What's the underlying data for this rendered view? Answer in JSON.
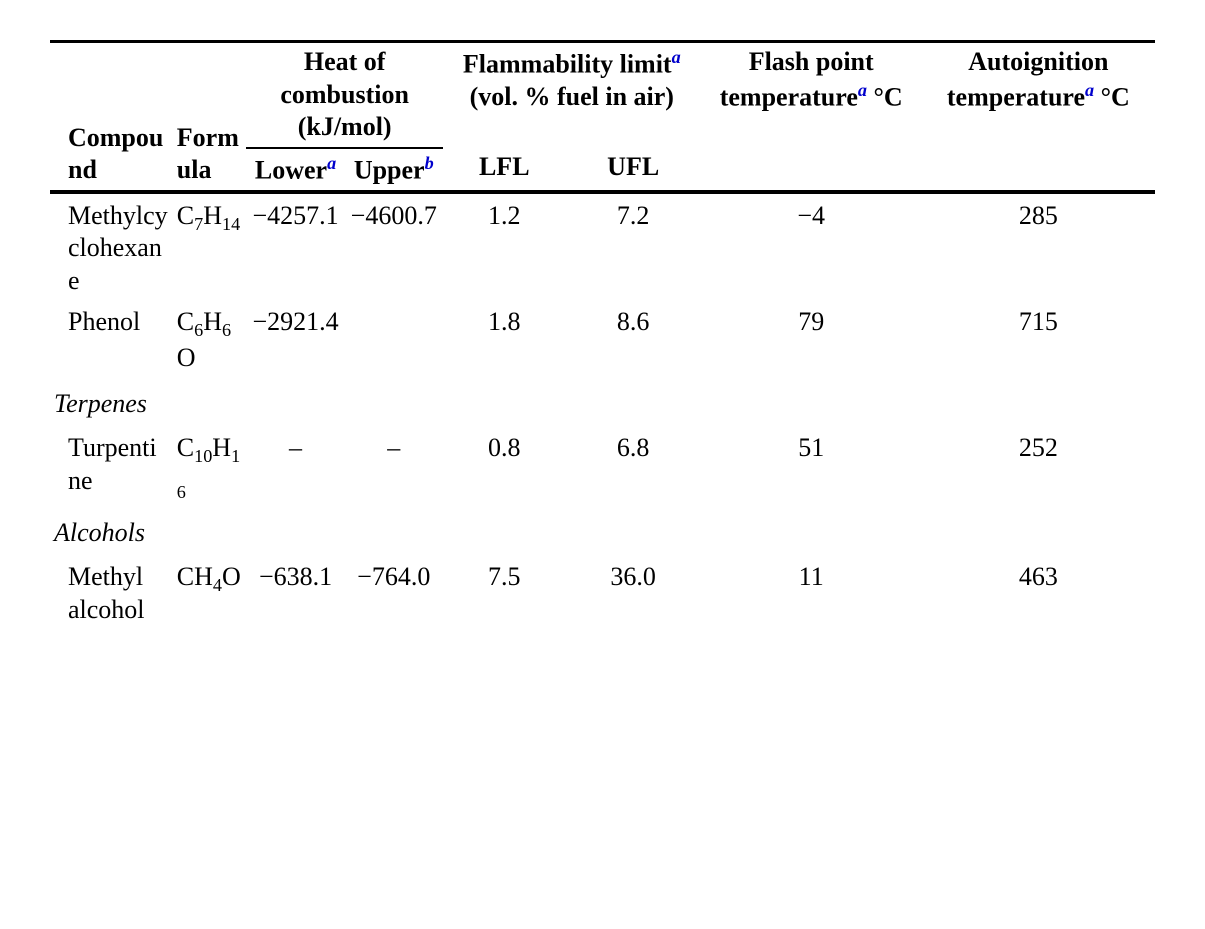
{
  "headers": {
    "compound": "Compound",
    "formula": "Formula",
    "heat_group": "Heat of combustion (kJ/mol)",
    "lower_prefix": "Lower",
    "upper_prefix": "Upper",
    "flam_group_prefix": "Flammability limit",
    "flam_group_suffix": " (vol. % fuel in air)",
    "lfl": "LFL",
    "ufl": "UFL",
    "flash_prefix": "Flash point temperature",
    "flash_suffix": " °C",
    "auto_prefix": "Autoignition temperature",
    "auto_suffix": " °C",
    "note_a": "a",
    "note_b": "b"
  },
  "rows": [
    {
      "type": "data",
      "compound": "Methylcyclohexane",
      "formula_html": "C<sub>7</sub>H<sub>14</sub>",
      "lower": "−4257.1",
      "upper": "−4600.7",
      "lfl": "1.2",
      "ufl": "7.2",
      "flash": "−4",
      "auto": "285"
    },
    {
      "type": "data",
      "compound": "Phenol",
      "formula_html": "C<sub>6</sub>H<sub>6</sub>O",
      "lower": "−2921.4",
      "upper": "",
      "lfl": "1.8",
      "ufl": "8.6",
      "flash": "79",
      "auto": "715"
    },
    {
      "type": "group",
      "label": "Terpenes"
    },
    {
      "type": "data",
      "compound": "Turpentine",
      "formula_html": "C<sub>10</sub>H<sub>16</sub>",
      "lower": "–",
      "upper": "–",
      "lfl": "0.8",
      "ufl": "6.8",
      "flash": "51",
      "auto": "252"
    },
    {
      "type": "group",
      "label": "Alcohols"
    },
    {
      "type": "data",
      "compound": "Methyl alcohol",
      "formula_html": "CH<sub>4</sub>O",
      "lower": "−638.1",
      "upper": "−764.0",
      "lfl": "7.5",
      "ufl": "36.0",
      "flash": "11",
      "auto": "463"
    }
  ]
}
